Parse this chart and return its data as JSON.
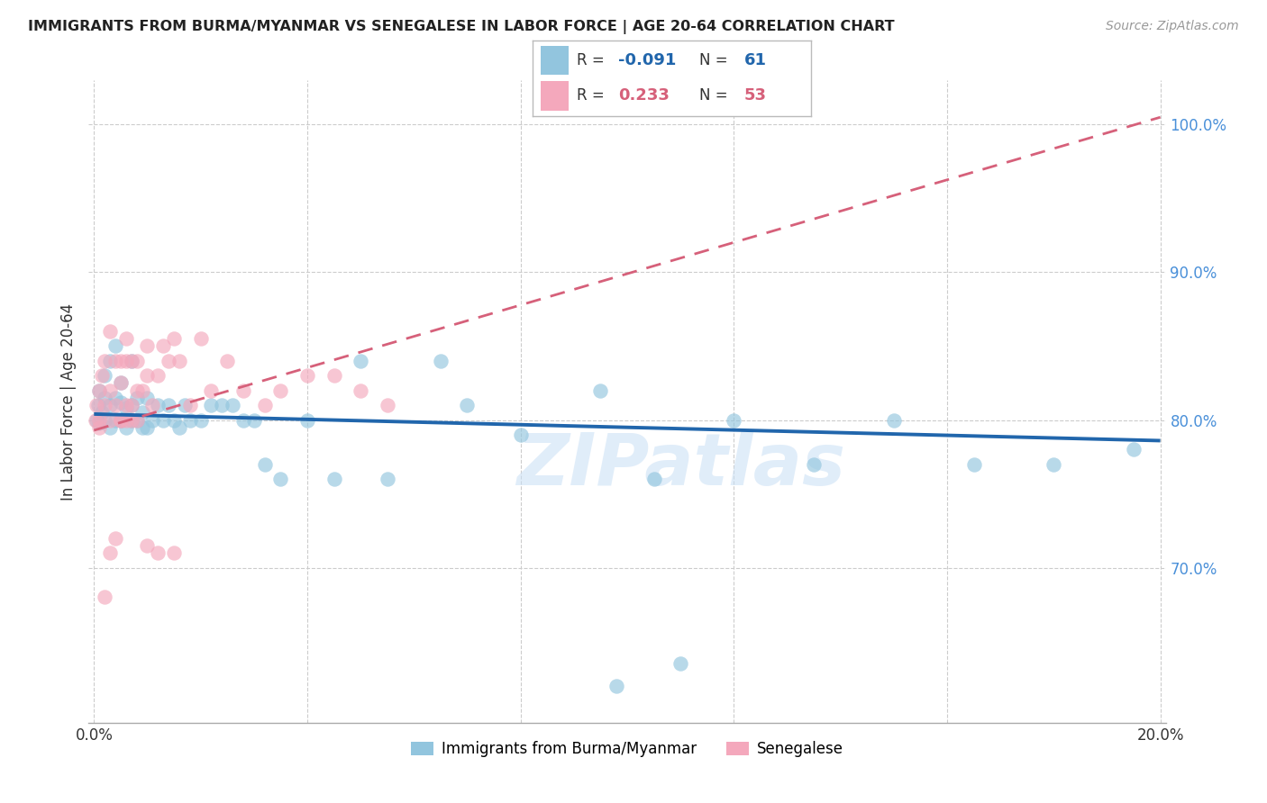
{
  "title": "IMMIGRANTS FROM BURMA/MYANMAR VS SENEGALESE IN LABOR FORCE | AGE 20-64 CORRELATION CHART",
  "source": "Source: ZipAtlas.com",
  "ylabel": "In Labor Force | Age 20-64",
  "xlim": [
    -0.001,
    0.201
  ],
  "ylim": [
    0.595,
    1.03
  ],
  "xtick_positions": [
    0.0,
    0.04,
    0.08,
    0.12,
    0.16,
    0.2
  ],
  "xticklabels": [
    "0.0%",
    "",
    "",
    "",
    "",
    "20.0%"
  ],
  "ytick_positions": [
    0.7,
    0.8,
    0.9,
    1.0
  ],
  "ytick_labels": [
    "70.0%",
    "80.0%",
    "90.0%",
    "100.0%"
  ],
  "blue_color": "#92C5DE",
  "pink_color": "#F4A8BC",
  "blue_line_color": "#2166AC",
  "pink_line_color": "#D6607A",
  "watermark": "ZIPatlas",
  "watermark_color": "#C8DFF5",
  "legend_R_blue": "-0.091",
  "legend_N_blue": "61",
  "legend_R_pink": "0.233",
  "legend_N_pink": "53",
  "blue_label": "Immigrants from Burma/Myanmar",
  "pink_label": "Senegalese",
  "blue_scatter_x": [
    0.0005,
    0.0008,
    0.001,
    0.001,
    0.0015,
    0.002,
    0.002,
    0.002,
    0.003,
    0.003,
    0.003,
    0.004,
    0.004,
    0.004,
    0.005,
    0.005,
    0.005,
    0.006,
    0.006,
    0.007,
    0.007,
    0.007,
    0.008,
    0.008,
    0.009,
    0.009,
    0.01,
    0.01,
    0.011,
    0.012,
    0.013,
    0.014,
    0.015,
    0.016,
    0.017,
    0.018,
    0.02,
    0.022,
    0.024,
    0.026,
    0.028,
    0.03,
    0.032,
    0.035,
    0.04,
    0.045,
    0.05,
    0.055,
    0.065,
    0.07,
    0.08,
    0.095,
    0.105,
    0.12,
    0.135,
    0.15,
    0.165,
    0.18,
    0.195,
    0.098,
    0.11
  ],
  "blue_scatter_y": [
    0.8,
    0.81,
    0.798,
    0.82,
    0.805,
    0.8,
    0.815,
    0.83,
    0.795,
    0.81,
    0.84,
    0.8,
    0.815,
    0.85,
    0.8,
    0.812,
    0.825,
    0.795,
    0.808,
    0.8,
    0.81,
    0.84,
    0.8,
    0.815,
    0.795,
    0.805,
    0.795,
    0.815,
    0.8,
    0.81,
    0.8,
    0.81,
    0.8,
    0.795,
    0.81,
    0.8,
    0.8,
    0.81,
    0.81,
    0.81,
    0.8,
    0.8,
    0.77,
    0.76,
    0.8,
    0.76,
    0.84,
    0.76,
    0.84,
    0.81,
    0.79,
    0.82,
    0.76,
    0.8,
    0.77,
    0.8,
    0.77,
    0.77,
    0.78,
    0.62,
    0.635
  ],
  "pink_scatter_x": [
    0.0003,
    0.0005,
    0.001,
    0.001,
    0.001,
    0.0015,
    0.002,
    0.002,
    0.003,
    0.003,
    0.003,
    0.004,
    0.004,
    0.005,
    0.005,
    0.005,
    0.006,
    0.006,
    0.006,
    0.007,
    0.007,
    0.008,
    0.008,
    0.009,
    0.01,
    0.01,
    0.011,
    0.012,
    0.013,
    0.014,
    0.015,
    0.016,
    0.018,
    0.02,
    0.022,
    0.025,
    0.028,
    0.032,
    0.035,
    0.04,
    0.045,
    0.05,
    0.055,
    0.002,
    0.003,
    0.004,
    0.005,
    0.006,
    0.007,
    0.008,
    0.01,
    0.012,
    0.015
  ],
  "pink_scatter_y": [
    0.8,
    0.81,
    0.795,
    0.82,
    0.8,
    0.83,
    0.81,
    0.84,
    0.8,
    0.82,
    0.86,
    0.81,
    0.84,
    0.8,
    0.825,
    0.84,
    0.81,
    0.84,
    0.855,
    0.8,
    0.84,
    0.82,
    0.84,
    0.82,
    0.83,
    0.85,
    0.81,
    0.83,
    0.85,
    0.84,
    0.855,
    0.84,
    0.81,
    0.855,
    0.82,
    0.84,
    0.82,
    0.81,
    0.82,
    0.83,
    0.83,
    0.82,
    0.81,
    0.68,
    0.71,
    0.72,
    0.8,
    0.8,
    0.81,
    0.8,
    0.715,
    0.71,
    0.71
  ],
  "blue_trend_x": [
    0.0,
    0.2
  ],
  "blue_trend_y": [
    0.804,
    0.786
  ],
  "pink_trend_x": [
    0.0,
    0.2
  ],
  "pink_trend_y": [
    0.793,
    1.005
  ]
}
